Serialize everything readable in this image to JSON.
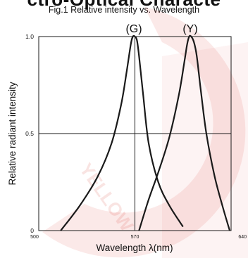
{
  "banner_text": "ctro-Optical Characte",
  "chart_data": {
    "type": "line",
    "title": "Fig.1 Relative intensity vs. Wavelength",
    "xlabel": "Wavelength λ(nm)",
    "ylabel": "Relative radiant intensity",
    "xlim": [
      500,
      640
    ],
    "ylim": [
      0,
      1.0
    ],
    "x_ticks": [
      "500",
      "570",
      "640"
    ],
    "y_ticks": [
      "0",
      "0.5",
      "1.0"
    ],
    "crosshair": {
      "x": 570,
      "y": 0.5
    },
    "grid": false,
    "series": [
      {
        "name": "(G)",
        "color": "#1a1a1a",
        "x": [
          516,
          530,
          543,
          553,
          560,
          564,
          567,
          568.5,
          570,
          571.5,
          573,
          576,
          580,
          587,
          595,
          605
        ],
        "y": [
          0.0,
          0.13,
          0.28,
          0.45,
          0.65,
          0.82,
          0.96,
          1.0,
          1.0,
          0.98,
          0.9,
          0.7,
          0.45,
          0.25,
          0.13,
          0.02
        ]
      },
      {
        "name": "(Y)",
        "color": "#1a1a1a",
        "x": [
          573,
          580,
          587,
          595,
          602,
          606,
          608,
          609.5,
          611,
          613,
          615,
          618,
          622,
          628,
          634,
          639
        ],
        "y": [
          0.0,
          0.16,
          0.3,
          0.48,
          0.7,
          0.87,
          0.96,
          1.0,
          1.0,
          0.97,
          0.9,
          0.72,
          0.5,
          0.28,
          0.12,
          0.0
        ]
      }
    ]
  }
}
